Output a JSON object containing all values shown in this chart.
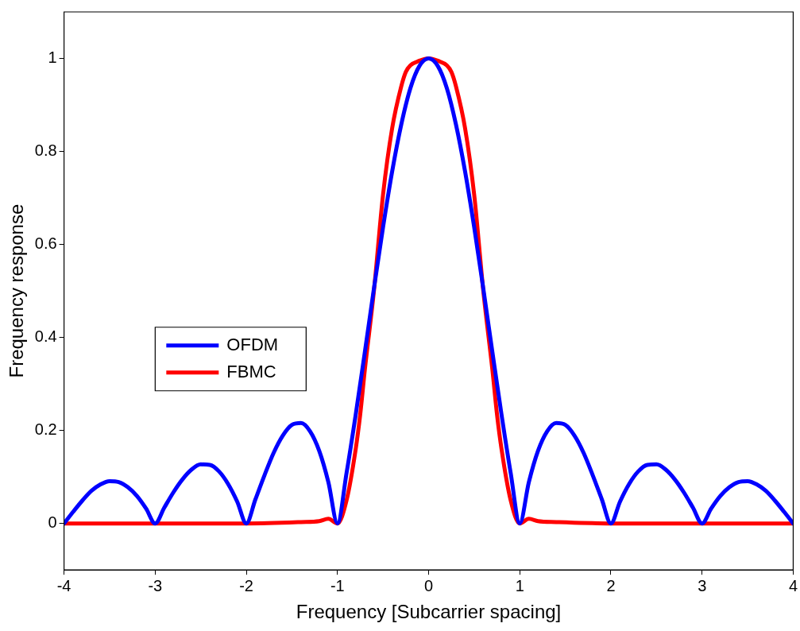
{
  "chart_data": {
    "type": "line",
    "xlabel": "Frequency [Subcarrier spacing]",
    "ylabel": "Frequency response",
    "xlim": [
      -4,
      4
    ],
    "xticks": [
      -4,
      -3,
      -2,
      -1,
      0,
      1,
      2,
      3,
      4
    ],
    "ylim": [
      -0.1,
      1.1
    ],
    "yticks": [
      0,
      0.2,
      0.4,
      0.6,
      0.8,
      1
    ],
    "grid": false,
    "legend": "left",
    "marker": "none",
    "line_style": "solid",
    "series": [
      {
        "name": "OFDM",
        "color": "#0000ff",
        "x": [
          -4,
          -3.9,
          -3.8,
          -3.7,
          -3.6,
          -3.5,
          -3.4,
          -3.3,
          -3.2,
          -3.1,
          -3,
          -2.9,
          -2.8,
          -2.7,
          -2.6,
          -2.5,
          -2.4,
          -2.3,
          -2.2,
          -2.1,
          -2,
          -1.9,
          -1.8,
          -1.7,
          -1.6,
          -1.5,
          -1.4,
          -1.3,
          -1.2,
          -1.1,
          -1,
          -0.9,
          -0.8,
          -0.7,
          -0.6,
          -0.5,
          -0.4,
          -0.3,
          -0.2,
          -0.1,
          0,
          0.1,
          0.2,
          0.3,
          0.4,
          0.5,
          0.6,
          0.7,
          0.8,
          0.9,
          1,
          1.1,
          1.2,
          1.3,
          1.4,
          1.5,
          1.6,
          1.7,
          1.8,
          1.9,
          2,
          2.1,
          2.2,
          2.3,
          2.4,
          2.5,
          2.6,
          2.7,
          2.8,
          2.9,
          3,
          3.1,
          3.2,
          3.3,
          3.4,
          3.5,
          3.6,
          3.7,
          3.8,
          3.9,
          4
        ],
        "values": [
          0,
          0.025,
          0.049,
          0.07,
          0.084,
          0.091,
          0.089,
          0.078,
          0.059,
          0.032,
          0,
          0.034,
          0.067,
          0.095,
          0.116,
          0.127,
          0.126,
          0.112,
          0.085,
          0.047,
          0,
          0.052,
          0.104,
          0.152,
          0.189,
          0.212,
          0.216,
          0.198,
          0.156,
          0.089,
          0,
          0.109,
          0.234,
          0.368,
          0.505,
          0.637,
          0.757,
          0.858,
          0.936,
          0.984,
          1,
          0.984,
          0.936,
          0.858,
          0.757,
          0.637,
          0.505,
          0.368,
          0.234,
          0.109,
          0,
          0.089,
          0.156,
          0.198,
          0.216,
          0.212,
          0.189,
          0.152,
          0.104,
          0.052,
          0,
          0.047,
          0.085,
          0.112,
          0.126,
          0.127,
          0.116,
          0.095,
          0.067,
          0.034,
          0,
          0.032,
          0.059,
          0.078,
          0.089,
          0.091,
          0.084,
          0.07,
          0.049,
          0.025,
          0
        ]
      },
      {
        "name": "FBMC",
        "color": "#ff0000",
        "x": [
          -4,
          -2,
          -1.4,
          -1.2,
          -1.1,
          -1,
          -0.9,
          -0.8,
          -0.75,
          -0.7,
          -0.6,
          -0.5,
          -0.4,
          -0.3,
          -0.25,
          -0.2,
          -0.1,
          0,
          0.1,
          0.2,
          0.25,
          0.3,
          0.4,
          0.5,
          0.6,
          0.7,
          0.75,
          0.8,
          0.9,
          1,
          1.1,
          1.2,
          1.4,
          2,
          4
        ],
        "values": [
          0,
          0,
          0.003,
          0.005,
          0.01,
          0,
          0.05,
          0.16,
          0.235,
          0.33,
          0.5,
          0.707,
          0.85,
          0.94,
          0.971,
          0.985,
          0.995,
          1,
          0.995,
          0.985,
          0.971,
          0.94,
          0.85,
          0.707,
          0.5,
          0.33,
          0.235,
          0.16,
          0.05,
          0,
          0.01,
          0.005,
          0.003,
          0,
          0
        ]
      }
    ]
  }
}
